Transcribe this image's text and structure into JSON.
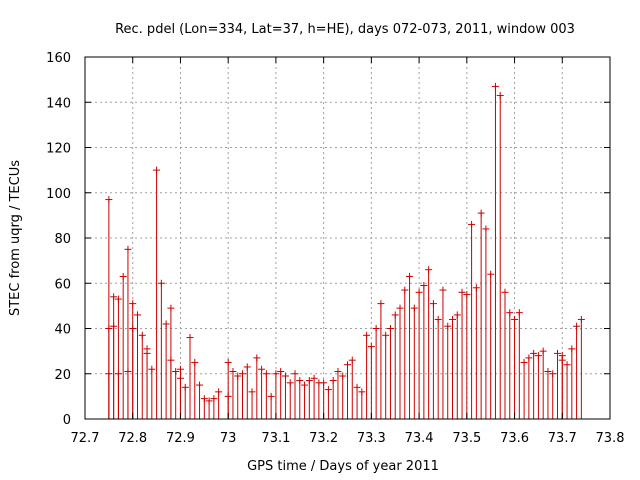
{
  "chart_data": {
    "type": "scatter",
    "title": "Rec. pdel (Lon=334, Lat=37, h=HE), days 072-073, 2011, window 003",
    "xlabel": "GPS time / Days of year 2011",
    "ylabel": "STEC from uqrg / TECUs",
    "xlim": [
      72.7,
      73.8
    ],
    "ylim": [
      0,
      160
    ],
    "xticks": [
      "72.7",
      "72.8",
      "72.9",
      "73",
      "73.1",
      "73.2",
      "73.3",
      "73.4",
      "73.5",
      "73.6",
      "73.7",
      "73.8"
    ],
    "yticks": [
      "0",
      "20",
      "40",
      "60",
      "80",
      "100",
      "120",
      "140",
      "160"
    ],
    "grid": true,
    "legend": "none",
    "series_color": "#cc0000",
    "marker": "plus with vertical error bar to baseline",
    "x": [
      72.75,
      72.75,
      72.75,
      72.76,
      72.76,
      72.77,
      72.77,
      72.78,
      72.79,
      72.79,
      72.8,
      72.8,
      72.81,
      72.82,
      72.83,
      72.83,
      72.84,
      72.85,
      72.86,
      72.87,
      72.88,
      72.88,
      72.89,
      72.9,
      72.9,
      72.91,
      72.92,
      72.93,
      72.94,
      72.95,
      72.96,
      72.97,
      72.98,
      73.0,
      73.0,
      73.01,
      73.02,
      73.03,
      73.04,
      73.05,
      73.06,
      73.07,
      73.08,
      73.09,
      73.1,
      73.11,
      73.12,
      73.13,
      73.14,
      73.15,
      73.16,
      73.17,
      73.18,
      73.19,
      73.2,
      73.21,
      73.22,
      73.23,
      73.24,
      73.25,
      73.26,
      73.27,
      73.28,
      73.29,
      73.3,
      73.31,
      73.32,
      73.33,
      73.34,
      73.35,
      73.36,
      73.37,
      73.38,
      73.39,
      73.4,
      73.41,
      73.42,
      73.43,
      73.44,
      73.45,
      73.46,
      73.47,
      73.48,
      73.49,
      73.5,
      73.51,
      73.52,
      73.53,
      73.54,
      73.55,
      73.56,
      73.57,
      73.58,
      73.59,
      73.6,
      73.61,
      73.62,
      73.63,
      73.64,
      73.65,
      73.66,
      73.67,
      73.68,
      73.69,
      73.7,
      73.7,
      73.71,
      73.72,
      73.73,
      73.74
    ],
    "y": [
      97,
      40,
      20,
      54,
      41,
      53,
      20,
      63,
      75,
      21,
      51,
      40,
      46,
      37,
      29,
      31,
      22,
      110,
      60,
      42,
      49,
      26,
      21,
      18,
      22,
      14,
      36,
      25,
      15,
      9,
      8,
      9,
      12,
      25,
      10,
      21,
      19,
      20,
      23,
      12,
      27,
      22,
      20,
      10,
      20,
      21,
      19,
      16,
      20,
      17,
      15,
      17,
      18,
      16,
      16,
      13,
      17,
      21,
      19,
      24,
      26,
      14,
      12,
      37,
      32,
      40,
      51,
      37,
      40,
      46,
      49,
      57,
      63,
      49,
      56,
      59,
      66,
      51,
      44,
      57,
      41,
      44,
      46,
      56,
      55,
      86,
      58,
      91,
      84,
      64,
      147,
      143,
      56,
      47,
      44,
      47,
      25,
      27,
      29,
      28,
      30,
      21,
      20,
      29,
      28,
      26,
      24,
      31,
      41,
      44
    ]
  }
}
